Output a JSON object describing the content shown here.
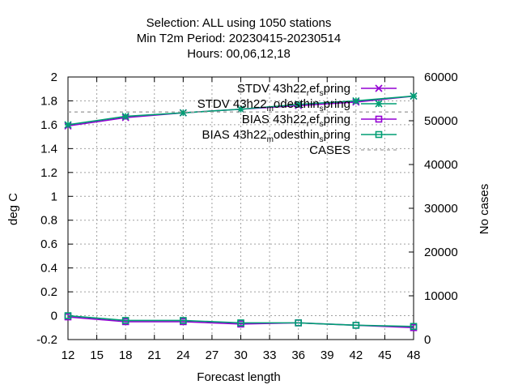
{
  "chart_data": {
    "type": "line",
    "title": [
      "Selection: ALL using  1050 stations",
      "Min T2m   Period: 20230415-20230514",
      "Hours:  00,06,12,18"
    ],
    "xlabel": "Forecast length",
    "ylabel": "deg C",
    "y2label": "No cases",
    "xlim": [
      12,
      48
    ],
    "ylim": [
      -0.2,
      2
    ],
    "y2lim": [
      0,
      60000
    ],
    "xticks": [
      "12",
      "15",
      "18",
      "21",
      "24",
      "27",
      "30",
      "33",
      "36",
      "39",
      "42",
      "45",
      "48"
    ],
    "yticks": [
      "2",
      "1.8",
      "1.6",
      "1.4",
      "1.2",
      "1",
      "0.8",
      "0.6",
      "0.4",
      "0.2",
      "0",
      "-0.2"
    ],
    "y2ticks": [
      "60000",
      "50000",
      "40000",
      "30000",
      "20000",
      "10000",
      "0"
    ],
    "grid": true,
    "legend_position": "top-right",
    "x": [
      12,
      18,
      24,
      30,
      36,
      42,
      48
    ],
    "series": [
      {
        "legend": [
          [
            "STDV 43h22",
            ""
          ],
          [
            "r",
            "sub"
          ],
          [
            "ef",
            ""
          ],
          [
            "s",
            "sub"
          ],
          [
            "pring",
            ""
          ]
        ],
        "color": "#9400d3",
        "marker": "cross",
        "axis": "y",
        "values": [
          1.59,
          1.66,
          1.7,
          1.73,
          1.76,
          1.79,
          1.84
        ]
      },
      {
        "legend": [
          [
            "STDV 43h22",
            ""
          ],
          [
            "m",
            "sub"
          ],
          [
            "odesthin",
            ""
          ],
          [
            "s",
            "sub"
          ],
          [
            "pring",
            ""
          ]
        ],
        "color": "#009e73",
        "marker": "star",
        "axis": "y",
        "values": [
          1.6,
          1.67,
          1.7,
          1.73,
          1.77,
          1.8,
          1.84
        ]
      },
      {
        "legend": [
          [
            "BIAS 43h22",
            ""
          ],
          [
            "r",
            "sub"
          ],
          [
            "ef",
            ""
          ],
          [
            "s",
            "sub"
          ],
          [
            "pring",
            ""
          ]
        ],
        "color": "#9400d3",
        "marker": "square",
        "axis": "y",
        "values": [
          -0.01,
          -0.05,
          -0.05,
          -0.07,
          -0.06,
          -0.08,
          -0.1
        ]
      },
      {
        "legend": [
          [
            "BIAS 43h22",
            ""
          ],
          [
            "m",
            "sub"
          ],
          [
            "odesthin",
            ""
          ],
          [
            "s",
            "sub"
          ],
          [
            "pring",
            ""
          ]
        ],
        "color": "#009e73",
        "marker": "square",
        "axis": "y",
        "values": [
          0.0,
          -0.04,
          -0.04,
          -0.06,
          -0.06,
          -0.08,
          -0.09
        ]
      },
      {
        "legend": [
          [
            "CASES",
            ""
          ]
        ],
        "color": "#a0a0a0",
        "marker": "none",
        "dashed": true,
        "axis": "y2",
        "values": [
          52000,
          52000,
          52000,
          52000,
          52000,
          52000,
          52000
        ]
      }
    ]
  }
}
